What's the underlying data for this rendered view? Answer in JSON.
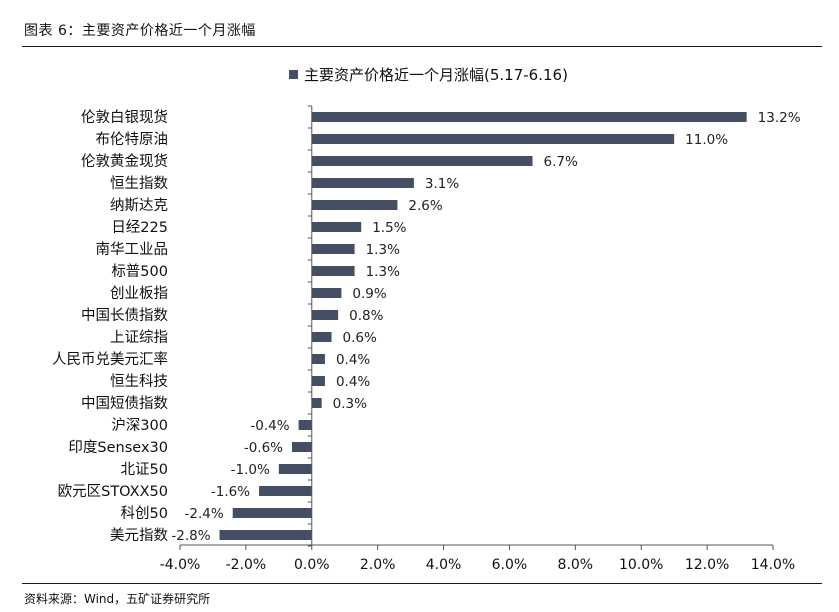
{
  "figure": {
    "caption": "图表 6：主要资产价格近一个月涨幅",
    "source": "资料来源：Wind，五矿证券研究所"
  },
  "colors": {
    "bar": "#444f63",
    "axis": "#555555",
    "text": "#111111"
  },
  "chart_data": {
    "type": "bar",
    "orientation": "horizontal",
    "title": "",
    "xlabel": "",
    "ylabel": "",
    "xlim": [
      -4,
      14
    ],
    "xticks": [
      -4,
      -2,
      0,
      2,
      4,
      6,
      8,
      10,
      12,
      14
    ],
    "xtick_labels": [
      "-4.0%",
      "-2.0%",
      "0.0%",
      "2.0%",
      "4.0%",
      "6.0%",
      "8.0%",
      "10.0%",
      "12.0%",
      "14.0%"
    ],
    "grid": false,
    "legend": {
      "placement": "top-center",
      "entries": [
        "主要资产价格近一个月涨幅(5.17-6.16)"
      ]
    },
    "categories": [
      "伦敦白银现货",
      "布伦特原油",
      "伦敦黄金现货",
      "恒生指数",
      "纳斯达克",
      "日经225",
      "南华工业品",
      "标普500",
      "创业板指",
      "中国长债指数",
      "上证综指",
      "人民币兑美元汇率",
      "恒生科技",
      "中国短债指数",
      "沪深300",
      "印度Sensex30",
      "北证50",
      "欧元区STOXX50",
      "科创50",
      "美元指数"
    ],
    "series": [
      {
        "name": "主要资产价格近一个月涨幅(5.17-6.16)",
        "values": [
          13.2,
          11.0,
          6.7,
          3.1,
          2.6,
          1.5,
          1.3,
          1.3,
          0.9,
          0.8,
          0.6,
          0.4,
          0.4,
          0.3,
          -0.4,
          -0.6,
          -1.0,
          -1.6,
          -2.4,
          -2.8
        ],
        "labels": [
          "13.2%",
          "11.0%",
          "6.7%",
          "3.1%",
          "2.6%",
          "1.5%",
          "1.3%",
          "1.3%",
          "0.9%",
          "0.8%",
          "0.6%",
          "0.4%",
          "0.4%",
          "0.3%",
          "-0.4%",
          "-0.6%",
          "-1.0%",
          "-1.6%",
          "-2.4%",
          "-2.8%"
        ]
      }
    ]
  }
}
